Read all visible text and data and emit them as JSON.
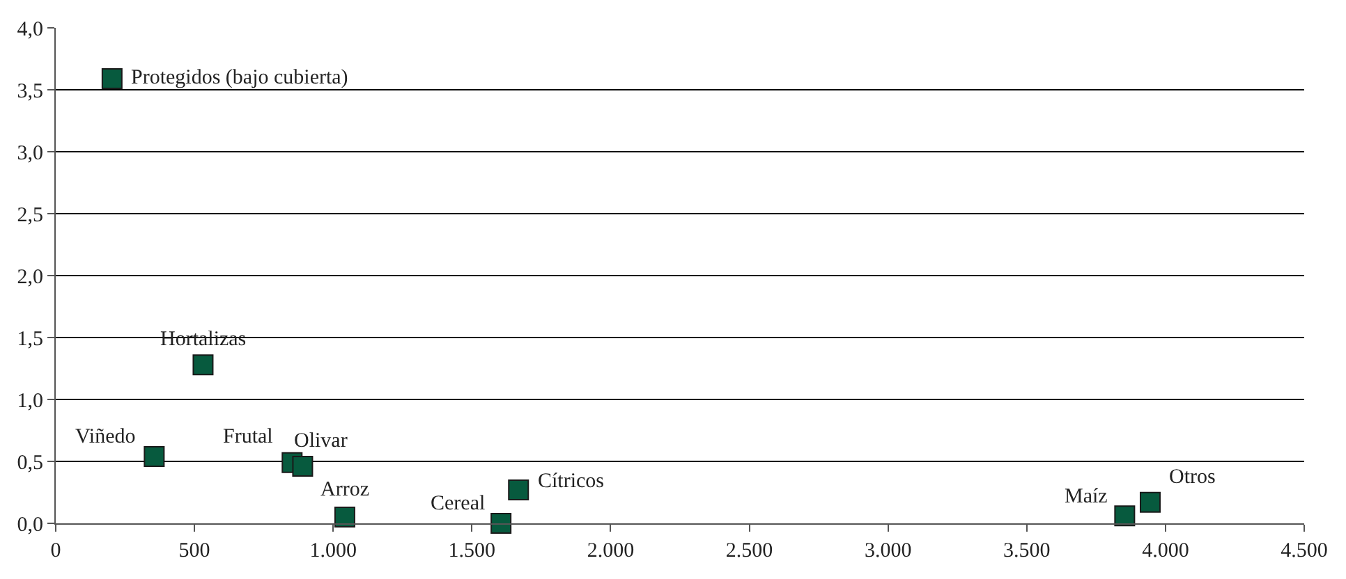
{
  "chart_data": {
    "type": "scatter",
    "x": [
      203,
      531,
      355,
      852,
      890,
      1042,
      1605,
      1668,
      3853,
      3945
    ],
    "values": [
      3.59,
      1.28,
      0.54,
      0.49,
      0.46,
      0.05,
      0.0,
      0.27,
      0.06,
      0.17
    ],
    "color": "#075a3e",
    "marker": "square",
    "annotations": [
      {
        "text": "Protegidos (bajo cubierta)",
        "x": 203,
        "y": 3.59
      },
      {
        "text": "Hortalizas",
        "x": 531,
        "y": 1.28
      },
      {
        "text": "Viñedo",
        "x": 355,
        "y": 0.54
      },
      {
        "text": "Frutal",
        "x": 852,
        "y": 0.49
      },
      {
        "text": "Olivar",
        "x": 890,
        "y": 0.46
      },
      {
        "text": "Arroz",
        "x": 1042,
        "y": 0.05
      },
      {
        "text": "Cereal",
        "x": 1605,
        "y": 0.0
      },
      {
        "text": "Cítricos",
        "x": 1668,
        "y": 0.27
      },
      {
        "text": "Maíz",
        "x": 3853,
        "y": 0.06
      },
      {
        "text": "Otros",
        "x": 3945,
        "y": 0.17
      }
    ],
    "xlim": [
      0,
      4500
    ],
    "xticks": [
      {
        "value": 0,
        "label": "0"
      },
      {
        "value": 500,
        "label": "500"
      },
      {
        "value": 1000,
        "label": "1.000"
      },
      {
        "value": 1500,
        "label": "1.500"
      },
      {
        "value": 2000,
        "label": "2.000"
      },
      {
        "value": 2500,
        "label": "2.500"
      },
      {
        "value": 3000,
        "label": "3.000"
      },
      {
        "value": 3500,
        "label": "3.500"
      },
      {
        "value": 4000,
        "label": "4.000"
      },
      {
        "value": 4500,
        "label": "4.500"
      }
    ],
    "ylim": [
      0,
      4
    ],
    "yticks": [
      {
        "value": 0,
        "label": "0,0"
      },
      {
        "value": 0.5,
        "label": "0,5"
      },
      {
        "value": 1,
        "label": "1,0"
      },
      {
        "value": 1.5,
        "label": "1,5"
      },
      {
        "value": 2,
        "label": "2,0"
      },
      {
        "value": 2.5,
        "label": "2,5"
      },
      {
        "value": 3,
        "label": "3,0"
      },
      {
        "value": 3.5,
        "label": "3,5"
      },
      {
        "value": 4,
        "label": "4,0"
      }
    ],
    "grid": "y",
    "legend": false
  }
}
